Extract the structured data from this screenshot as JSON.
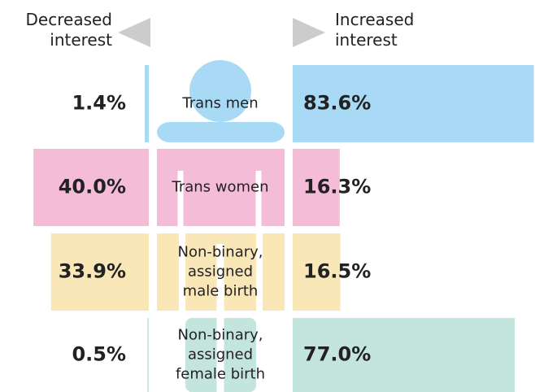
{
  "chart_data": {
    "type": "diverging-bar",
    "categories": [
      [
        "Trans men"
      ],
      [
        "Trans women"
      ],
      [
        "Non-binary,",
        "assigned",
        "male birth"
      ],
      [
        "Non-binary,",
        "assigned",
        "female birth"
      ]
    ],
    "colors": [
      "#a8daf6",
      "#f5bcd8",
      "#f9e7b8",
      "#c4e5dd"
    ],
    "series": [
      {
        "name": "Decreased interest",
        "values": [
          1.4,
          40.0,
          33.9,
          0.5
        ],
        "value_labels": [
          "1.4%",
          "40.0%",
          "33.9%",
          "0.5%"
        ]
      },
      {
        "name": "Increased interest",
        "values": [
          83.6,
          16.3,
          16.5,
          77.0
        ],
        "value_labels": [
          "83.6%",
          "16.3%",
          "16.5%",
          "77.0%"
        ]
      }
    ],
    "xlim": [
      0,
      84
    ]
  }
}
